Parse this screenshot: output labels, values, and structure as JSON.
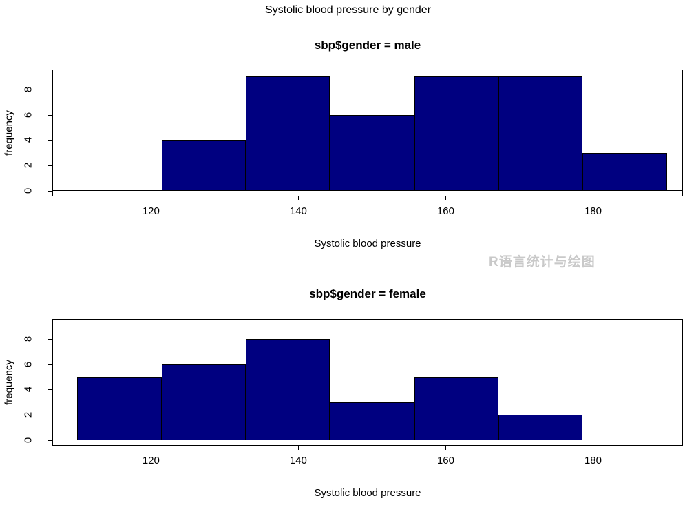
{
  "main_title": "Systolic blood pressure by gender",
  "watermark": {
    "text": "R语言统计与绘图",
    "color": "#c9c9c9"
  },
  "colors": {
    "bar_fill": "#000080",
    "bar_border": "#000000",
    "axis": "#000000",
    "background": "#ffffff"
  },
  "chart_data": [
    {
      "type": "bar",
      "subtype": "histogram",
      "panel": "male",
      "title": "sbp$gender = male",
      "xlabel": "Systolic blood pressure",
      "ylabel": "frequency",
      "bin_edges": [
        121.43,
        132.86,
        144.29,
        155.71,
        167.14,
        178.57,
        190
      ],
      "counts": [
        4,
        9,
        6,
        9,
        9,
        3
      ],
      "x_ticks": [
        120,
        140,
        160,
        180
      ],
      "y_ticks": [
        0,
        2,
        4,
        6,
        8
      ],
      "xlim": [
        106.7,
        192.1
      ],
      "ylim": [
        -0.37,
        9.5
      ],
      "grid": false,
      "legend": null
    },
    {
      "type": "bar",
      "subtype": "histogram",
      "panel": "female",
      "title": "sbp$gender = female",
      "xlabel": "Systolic blood pressure",
      "ylabel": "frequency",
      "bin_edges": [
        110,
        121.43,
        132.86,
        144.29,
        155.71,
        167.14,
        178.57
      ],
      "counts": [
        5,
        6,
        8,
        3,
        5,
        2
      ],
      "x_ticks": [
        120,
        140,
        160,
        180
      ],
      "y_ticks": [
        0,
        2,
        4,
        6,
        8
      ],
      "xlim": [
        106.7,
        192.1
      ],
      "ylim": [
        -0.37,
        9.5
      ],
      "grid": false,
      "legend": null
    }
  ]
}
